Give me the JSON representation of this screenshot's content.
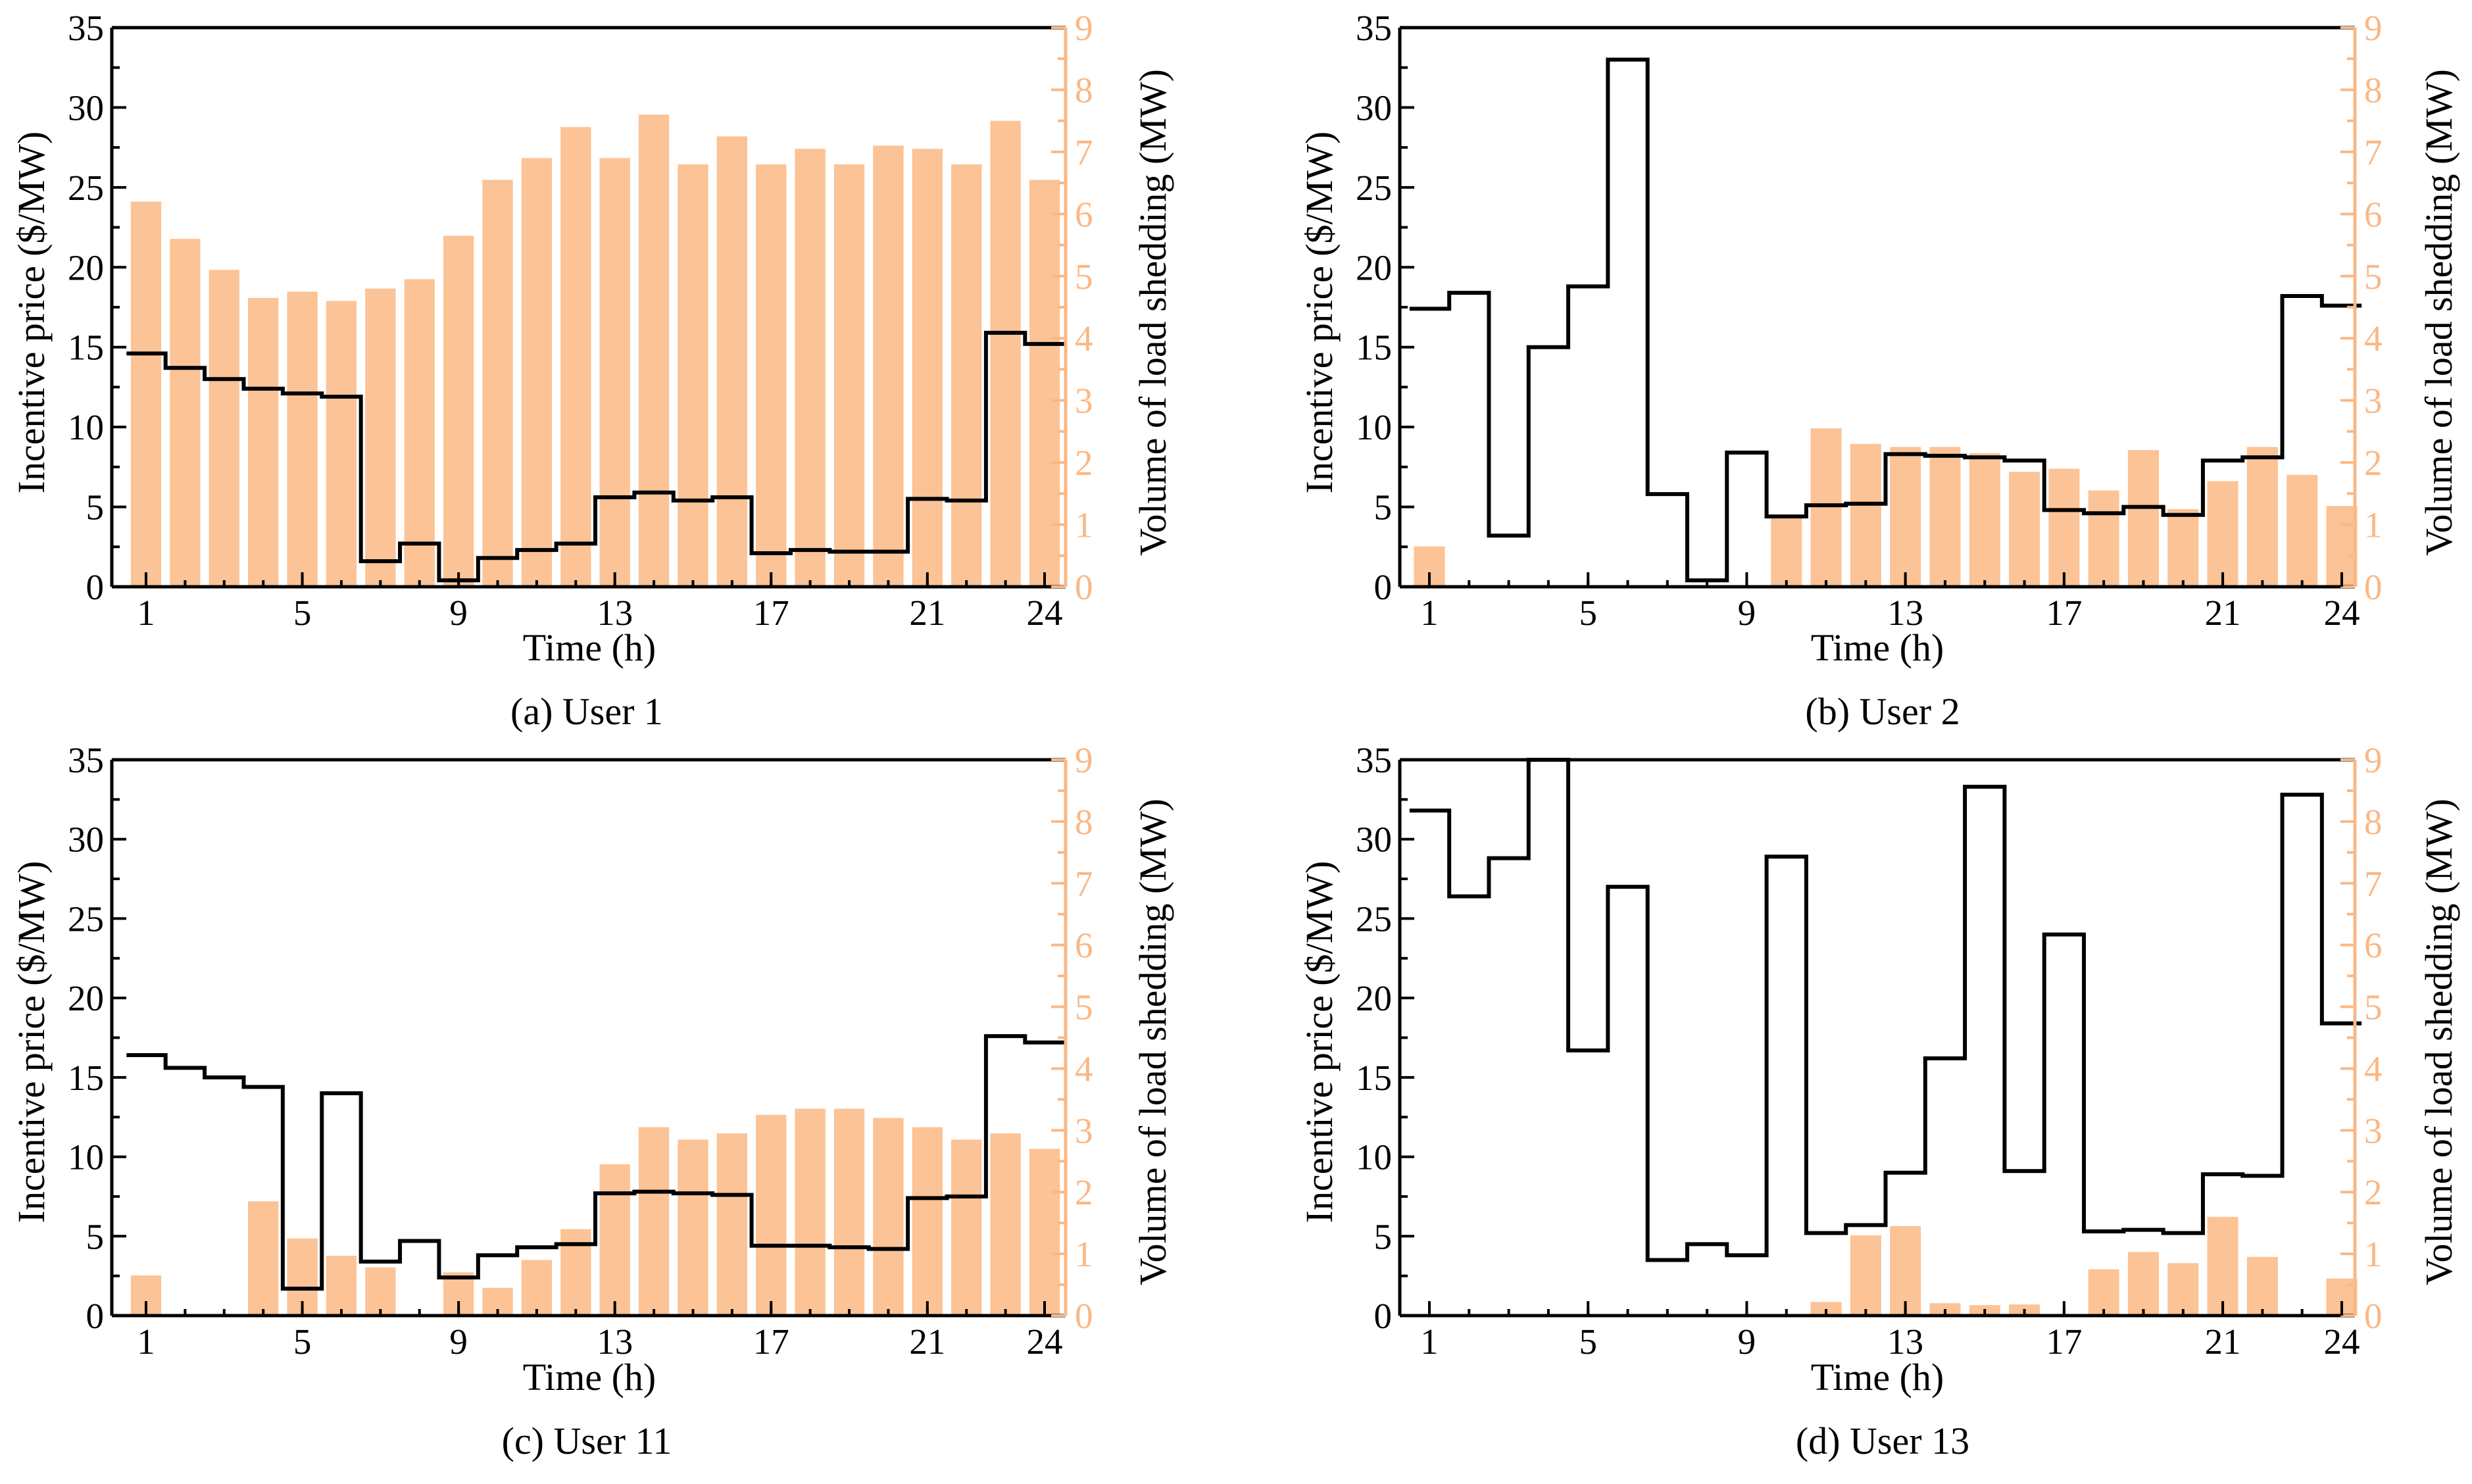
{
  "figure": {
    "colors": {
      "price_line": "#000000",
      "bars": "#fcc396",
      "right_axis": "#fab885"
    }
  },
  "chart_data": [
    {
      "type": "bar+step-line",
      "caption": "(a) User 1",
      "xlabel": "Time (h)",
      "ylabel_left": "Incentive price ($/MW)",
      "ylabel_right": "Volume of load shedding (MW)",
      "x_ticks": [
        "1",
        "5",
        "9",
        "13",
        "17",
        "21",
        "24"
      ],
      "ylim_left": [
        0,
        35
      ],
      "ylim_right": [
        0,
        9
      ],
      "yticks_left": [
        "0",
        "5",
        "10",
        "15",
        "20",
        "25",
        "30",
        "35"
      ],
      "yticks_right": [
        "0",
        "1",
        "2",
        "3",
        "4",
        "5",
        "6",
        "7",
        "8",
        "9"
      ],
      "hours": [
        1,
        2,
        3,
        4,
        5,
        6,
        7,
        8,
        9,
        10,
        11,
        12,
        13,
        14,
        15,
        16,
        17,
        18,
        19,
        20,
        21,
        22,
        23,
        24
      ],
      "load_shedding": [
        6.2,
        5.6,
        5.1,
        4.65,
        4.75,
        4.6,
        4.8,
        4.95,
        5.65,
        6.55,
        6.9,
        7.4,
        6.9,
        7.6,
        6.8,
        7.25,
        6.8,
        7.05,
        6.8,
        7.1,
        7.05,
        6.8,
        7.5,
        6.55
      ],
      "incentive_price": [
        14.6,
        13.7,
        13.0,
        12.4,
        12.1,
        11.9,
        1.6,
        2.7,
        0.4,
        1.8,
        2.3,
        2.7,
        5.6,
        5.9,
        5.4,
        5.6,
        2.1,
        2.3,
        2.2,
        2.2,
        5.5,
        5.4,
        15.9,
        15.2
      ]
    },
    {
      "type": "bar+step-line",
      "caption": "(b) User 2",
      "xlabel": "Time (h)",
      "ylabel_left": "Incentive price ($/MW)",
      "ylabel_right": "Volume of load shedding (MW)",
      "x_ticks": [
        "1",
        "5",
        "9",
        "13",
        "17",
        "21",
        "24"
      ],
      "ylim_left": [
        0,
        35
      ],
      "ylim_right": [
        0,
        9
      ],
      "yticks_left": [
        "0",
        "5",
        "10",
        "15",
        "20",
        "25",
        "30",
        "35"
      ],
      "yticks_right": [
        "0",
        "1",
        "2",
        "3",
        "4",
        "5",
        "6",
        "7",
        "8",
        "9"
      ],
      "hours": [
        1,
        2,
        3,
        4,
        5,
        6,
        7,
        8,
        9,
        10,
        11,
        12,
        13,
        14,
        15,
        16,
        17,
        18,
        19,
        20,
        21,
        22,
        23,
        24
      ],
      "load_shedding": [
        0.65,
        0,
        0,
        0,
        0,
        0,
        0,
        0,
        0,
        1.15,
        2.55,
        2.3,
        2.25,
        2.25,
        2.15,
        1.85,
        1.9,
        1.55,
        2.2,
        1.25,
        1.7,
        2.25,
        1.8,
        1.3
      ],
      "incentive_price": [
        17.4,
        18.4,
        3.2,
        15.0,
        18.8,
        33.0,
        5.8,
        0.4,
        8.4,
        4.4,
        5.1,
        5.2,
        8.3,
        8.2,
        8.1,
        7.9,
        4.8,
        4.6,
        5.0,
        4.5,
        7.9,
        8.1,
        18.2,
        17.6
      ]
    },
    {
      "type": "bar+step-line",
      "caption": "(c) User 11",
      "xlabel": "Time (h)",
      "ylabel_left": "Incentive price ($/MW)",
      "ylabel_right": "Volume of load shedding (MW)",
      "x_ticks": [
        "1",
        "5",
        "9",
        "13",
        "17",
        "21",
        "24"
      ],
      "ylim_left": [
        0,
        35
      ],
      "ylim_right": [
        0,
        9
      ],
      "yticks_left": [
        "0",
        "5",
        "10",
        "15",
        "20",
        "25",
        "30",
        "35"
      ],
      "yticks_right": [
        "0",
        "1",
        "2",
        "3",
        "4",
        "5",
        "6",
        "7",
        "8",
        "9"
      ],
      "hours": [
        1,
        2,
        3,
        4,
        5,
        6,
        7,
        8,
        9,
        10,
        11,
        12,
        13,
        14,
        15,
        16,
        17,
        18,
        19,
        20,
        21,
        22,
        23,
        24
      ],
      "load_shedding": [
        0.65,
        0,
        0,
        1.85,
        1.25,
        0.97,
        0.78,
        0,
        0.7,
        0.45,
        0.9,
        1.4,
        2.45,
        3.05,
        2.85,
        2.95,
        3.25,
        3.35,
        3.35,
        3.2,
        3.05,
        2.85,
        2.95,
        2.7
      ],
      "incentive_price": [
        16.4,
        15.6,
        15.0,
        14.4,
        1.7,
        14.0,
        3.4,
        4.7,
        2.4,
        3.8,
        4.3,
        4.5,
        7.7,
        7.8,
        7.7,
        7.6,
        4.4,
        4.4,
        4.3,
        4.2,
        7.4,
        7.5,
        17.6,
        17.2
      ]
    },
    {
      "type": "bar+step-line",
      "caption": "(d) User 13",
      "xlabel": "Time (h)",
      "ylabel_left": "Incentive price ($/MW)",
      "ylabel_right": "Volume of load shedding (MW)",
      "x_ticks": [
        "1",
        "5",
        "9",
        "13",
        "17",
        "21",
        "24"
      ],
      "ylim_left": [
        0,
        35
      ],
      "ylim_right": [
        0,
        9
      ],
      "yticks_left": [
        "0",
        "5",
        "10",
        "15",
        "20",
        "25",
        "30",
        "35"
      ],
      "yticks_right": [
        "0",
        "1",
        "2",
        "3",
        "4",
        "5",
        "6",
        "7",
        "8",
        "9"
      ],
      "hours": [
        1,
        2,
        3,
        4,
        5,
        6,
        7,
        8,
        9,
        10,
        11,
        12,
        13,
        14,
        15,
        16,
        17,
        18,
        19,
        20,
        21,
        22,
        23,
        24
      ],
      "load_shedding": [
        0,
        0,
        0,
        0,
        0,
        0,
        0,
        0,
        0,
        0,
        0.22,
        1.3,
        1.45,
        0.2,
        0.17,
        0.18,
        0,
        0.75,
        1.03,
        0.85,
        1.6,
        0.95,
        0,
        0.6
      ],
      "incentive_price": [
        31.8,
        26.4,
        28.8,
        35.0,
        16.7,
        27.0,
        3.5,
        4.5,
        3.8,
        28.9,
        5.2,
        5.7,
        9.0,
        16.2,
        33.3,
        9.1,
        24.0,
        5.3,
        5.4,
        5.2,
        8.9,
        8.8,
        32.8,
        18.4
      ]
    }
  ]
}
